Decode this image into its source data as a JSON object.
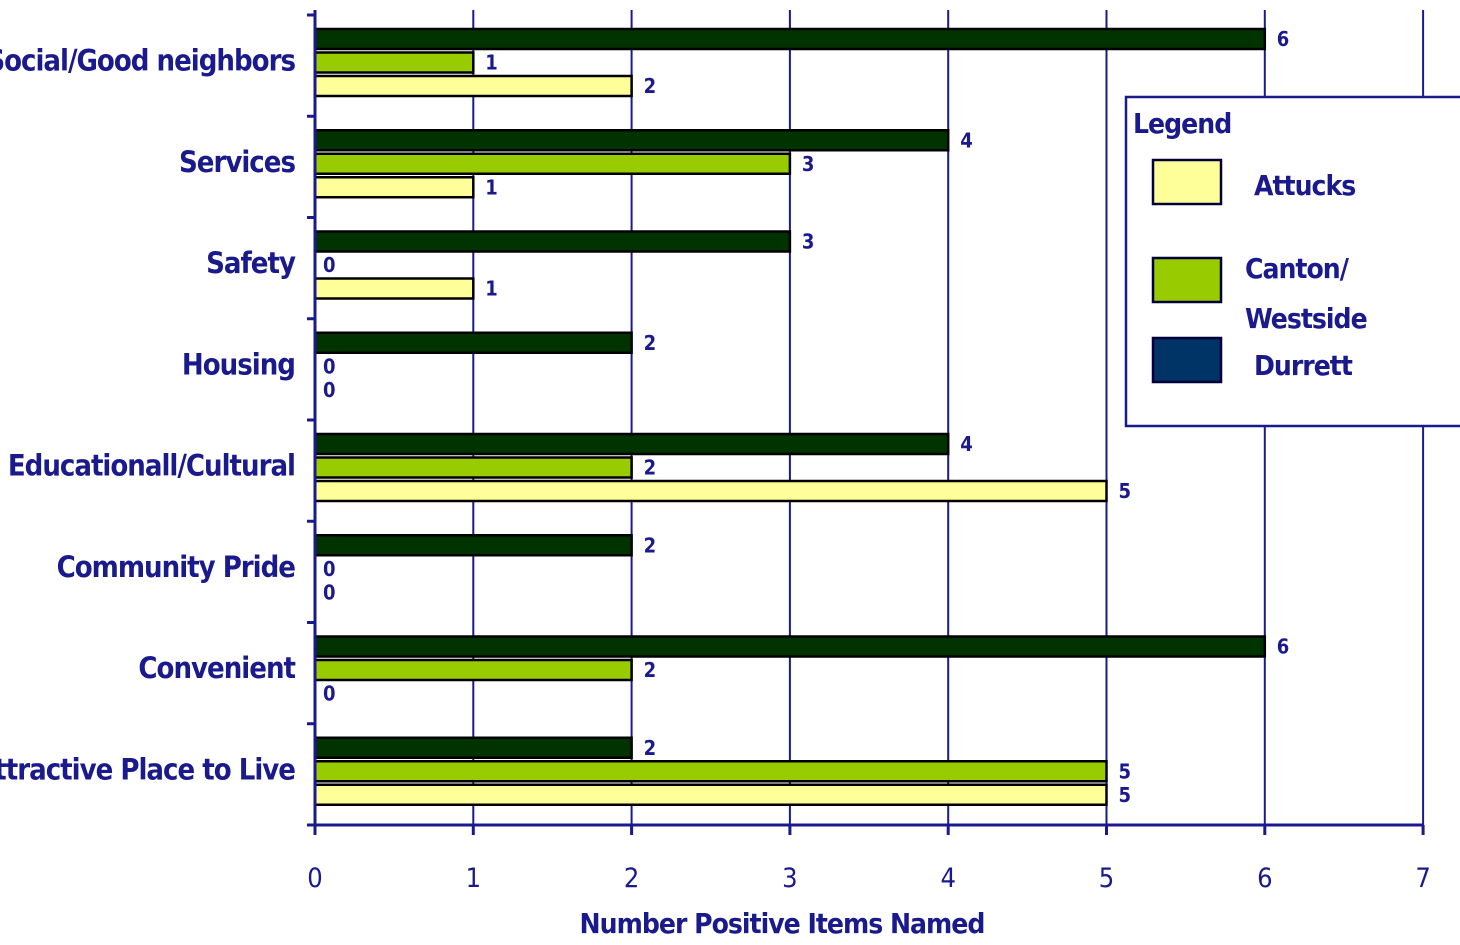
{
  "chart_data": {
    "type": "bar",
    "orientation": "horizontal",
    "title": "",
    "xlabel": "Number Positive Items Named",
    "ylabel": "",
    "xlim": [
      0,
      7
    ],
    "x_ticks": [
      "0",
      "1",
      "2",
      "3",
      "4",
      "5",
      "6",
      "7"
    ],
    "grid": true,
    "legend_title": "Legend",
    "legend_position": "right",
    "categories": [
      "Social/Good neighbors",
      "Services",
      "Safety",
      "Housing",
      "Educationall/Cultural",
      "Community Pride",
      "Convenient",
      "Attractive Place to Live"
    ],
    "series": [
      {
        "name": "Durrett",
        "color": "#003300",
        "legend_color": "#003366",
        "values": [
          6,
          4,
          3,
          2,
          4,
          2,
          6,
          2
        ]
      },
      {
        "name": "Canton/ Westside",
        "color": "#99cc00",
        "values": [
          1,
          3,
          0,
          0,
          2,
          0,
          2,
          5
        ]
      },
      {
        "name": "Attucks",
        "color": "#ffff99",
        "values": [
          2,
          1,
          1,
          0,
          5,
          0,
          0,
          5
        ]
      }
    ],
    "legend_order": [
      {
        "label": "Attucks",
        "series": 2
      },
      {
        "label": "Canton/ Westside",
        "series": 1
      },
      {
        "label": "Durrett",
        "series": 0
      }
    ],
    "colors": {
      "axis": "#1a1a8c",
      "grid": "#1a1a8c",
      "text": "#1a1a8c",
      "outline": "#000000"
    }
  }
}
